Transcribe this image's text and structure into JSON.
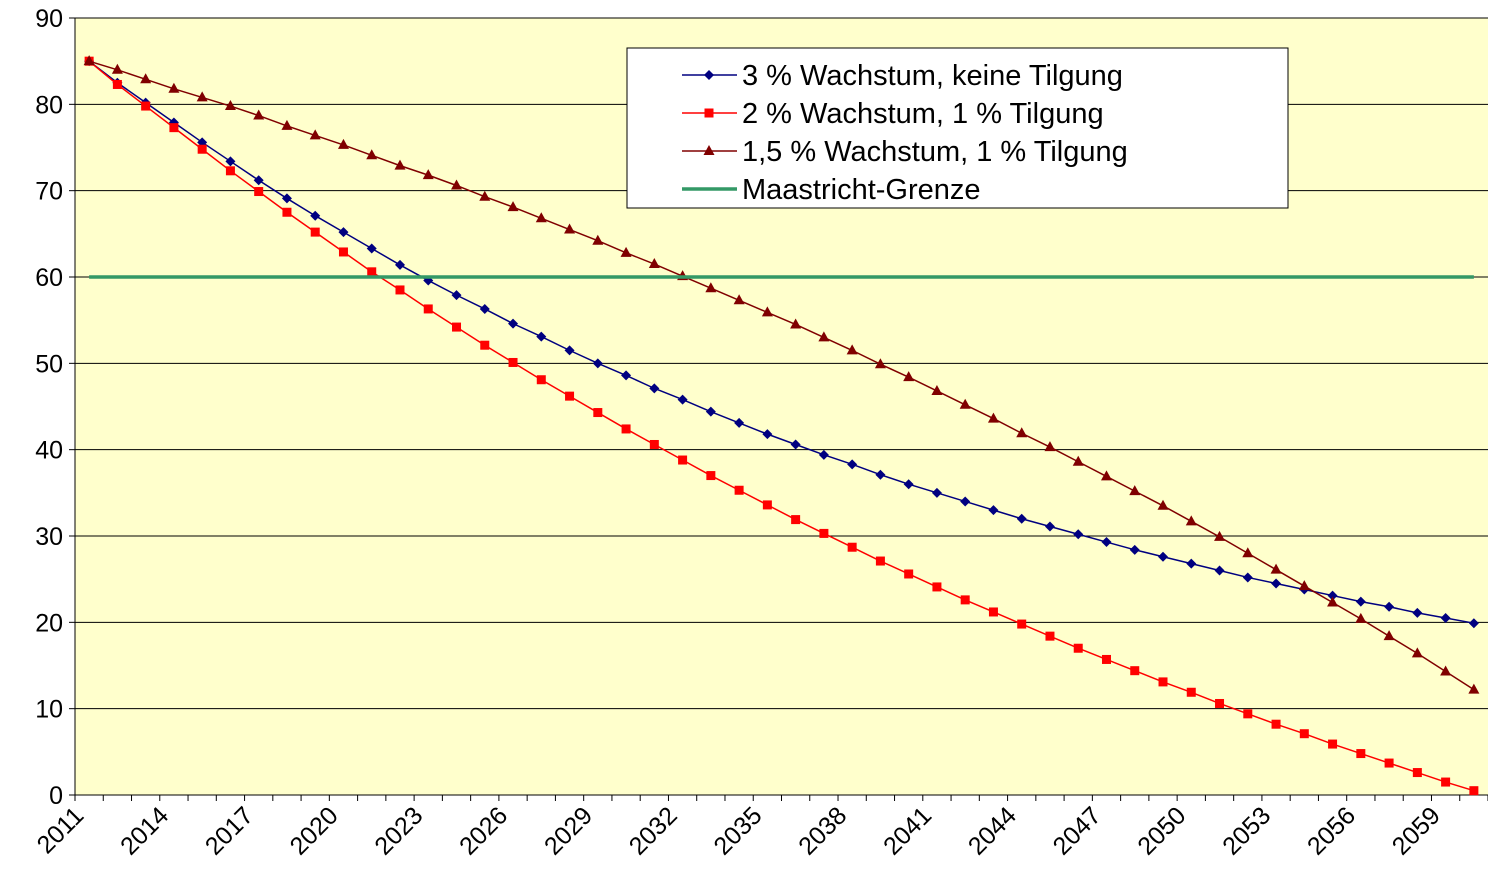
{
  "chart_data": {
    "type": "line",
    "categories": [
      "2011",
      null,
      null,
      "2014",
      null,
      null,
      "2017",
      null,
      null,
      "2020",
      null,
      null,
      "2023",
      null,
      null,
      "2026",
      null,
      null,
      "2029",
      null,
      null,
      "2032",
      null,
      null,
      "2035",
      null,
      null,
      "2038",
      null,
      null,
      "2041",
      null,
      null,
      "2044",
      null,
      null,
      "2047",
      null,
      null,
      "2050",
      null,
      null,
      "2053",
      null,
      null,
      "2056",
      null,
      null,
      "2059",
      null
    ],
    "series": [
      {
        "name": "3 % Wachstum, keine Tilgung",
        "color": "#000080",
        "marker": "diamond",
        "values": [
          85,
          82.5,
          80.2,
          77.9,
          75.6,
          73.4,
          71.2,
          69.1,
          67.1,
          65.2,
          63.3,
          61.4,
          59.6,
          57.9,
          56.3,
          54.6,
          53.1,
          51.5,
          50.0,
          48.6,
          47.1,
          45.8,
          44.4,
          43.1,
          41.8,
          40.6,
          39.4,
          38.3,
          37.1,
          36.0,
          35.0,
          34.0,
          33.0,
          32.0,
          31.1,
          30.2,
          29.3,
          28.4,
          27.6,
          26.8,
          26.0,
          25.2,
          24.5,
          23.8,
          23.1,
          22.4,
          21.8,
          21.1,
          20.5,
          19.9
        ]
      },
      {
        "name": "2 % Wachstum, 1 % Tilgung",
        "color": "#ff0000",
        "marker": "square",
        "values": [
          85,
          82.3,
          79.8,
          77.3,
          74.8,
          72.3,
          69.9,
          67.5,
          65.2,
          62.9,
          60.6,
          58.5,
          56.3,
          54.2,
          52.1,
          50.1,
          48.1,
          46.2,
          44.3,
          42.4,
          40.6,
          38.8,
          37.0,
          35.3,
          33.6,
          31.9,
          30.3,
          28.7,
          27.1,
          25.6,
          24.1,
          22.6,
          21.2,
          19.8,
          18.4,
          17.0,
          15.7,
          14.4,
          13.1,
          11.9,
          10.6,
          9.4,
          8.2,
          7.1,
          5.9,
          4.8,
          3.7,
          2.6,
          1.5,
          0.5
        ]
      },
      {
        "name": "1,5 % Wachstum, 1 % Tilgung",
        "color": "#800000",
        "marker": "triangle",
        "values": [
          85,
          84,
          82.9,
          81.8,
          80.8,
          79.8,
          78.7,
          77.5,
          76.4,
          75.3,
          74.1,
          72.9,
          71.8,
          70.6,
          69.3,
          68.1,
          66.8,
          65.5,
          64.2,
          62.8,
          61.5,
          60.1,
          58.7,
          57.3,
          55.9,
          54.5,
          53.0,
          51.5,
          49.9,
          48.4,
          46.8,
          45.2,
          43.6,
          41.9,
          40.3,
          38.6,
          36.9,
          35.2,
          33.5,
          31.7,
          29.9,
          28.0,
          26.1,
          24.2,
          22.3,
          20.4,
          18.4,
          16.4,
          14.3,
          12.2
        ]
      },
      {
        "name": "Maastricht-Grenze",
        "color": "#339966",
        "marker": "none",
        "values": [
          60,
          60,
          60,
          60,
          60,
          60,
          60,
          60,
          60,
          60,
          60,
          60,
          60,
          60,
          60,
          60,
          60,
          60,
          60,
          60,
          60,
          60,
          60,
          60,
          60,
          60,
          60,
          60,
          60,
          60,
          60,
          60,
          60,
          60,
          60,
          60,
          60,
          60,
          60,
          60,
          60,
          60,
          60,
          60,
          60,
          60,
          60,
          60,
          60,
          60
        ]
      }
    ],
    "ylim": [
      0,
      90
    ],
    "yticks": [
      0,
      10,
      20,
      30,
      40,
      50,
      60,
      70,
      80,
      90
    ],
    "grid": true,
    "plot_background": "#ffffcc",
    "legend": "top-right"
  }
}
